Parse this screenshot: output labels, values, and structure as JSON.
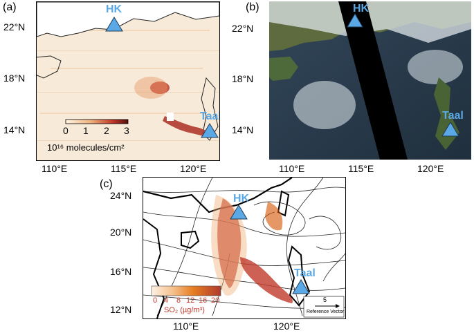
{
  "panels": {
    "a": {
      "label": "(a)",
      "lat_ticks": [
        "22°N",
        "18°N",
        "14°N"
      ],
      "lon_ticks": [
        "110°E",
        "115°E",
        "120°E"
      ],
      "colorbar": {
        "ticks": [
          "0",
          "1",
          "2",
          "3"
        ],
        "unit": "10¹⁶ molecules/cm²"
      },
      "sites": [
        "HK",
        "Taal"
      ]
    },
    "b": {
      "label": "(b)",
      "lat_ticks": [
        "22°N",
        "18°N",
        "14°N"
      ],
      "lon_ticks": [
        "110°E",
        "115°E",
        "120°E"
      ],
      "sites": [
        "HK",
        "Taal"
      ]
    },
    "c": {
      "label": "(c)",
      "lat_ticks": [
        "24°N",
        "20°N",
        "16°N",
        "12°N"
      ],
      "lon_ticks": [
        "110°E",
        "120°E"
      ],
      "colorbar": {
        "ticks": [
          "0",
          "4",
          "8",
          "12",
          "16",
          "20"
        ],
        "unit": "SO₂ (µg/m³)"
      },
      "reference_vector": {
        "value": "5",
        "label": "Reference Vector"
      },
      "sites": [
        "HK",
        "Taal"
      ]
    }
  },
  "colors": {
    "site_marker": "#5aa9e6",
    "plume": "#c0392b",
    "map_background": "#f7ead9"
  }
}
